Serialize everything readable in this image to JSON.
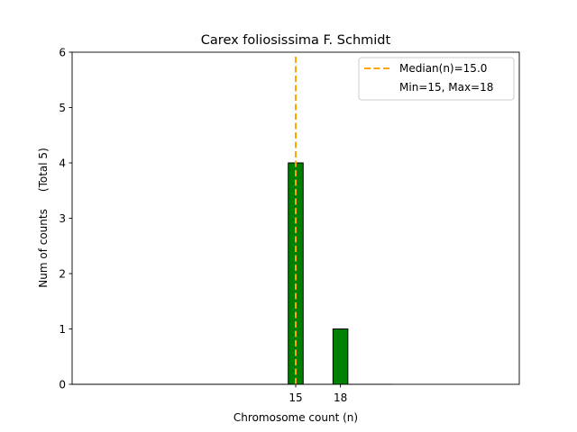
{
  "chart_data": {
    "type": "bar",
    "title": "Carex foliosissima F. Schmidt",
    "xlabel": "Chromosome count (n)",
    "ylabel": "Num of counts     (Total 5)",
    "x": [
      15,
      18
    ],
    "values": [
      4,
      1
    ],
    "bar_color": "#008000",
    "bar_edge_color": "#000000",
    "xtick_labels": [
      "15",
      "18"
    ],
    "ylim": [
      0,
      6
    ],
    "yticks": [
      0,
      1,
      2,
      3,
      4,
      5,
      6
    ],
    "xlim": [
      0,
      30
    ],
    "median": 15.0,
    "median_color": "#FFA500",
    "legend_position": "top-right",
    "legend": [
      {
        "label": "Median(n)=15.0",
        "style": "dashed-line"
      },
      {
        "label": "Min=15, Max=18",
        "style": "none"
      }
    ],
    "grid": false
  }
}
